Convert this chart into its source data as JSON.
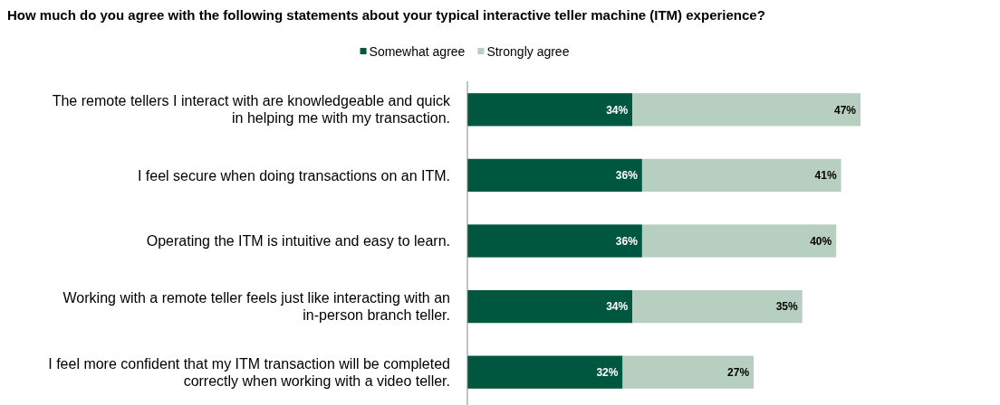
{
  "chart_data": {
    "type": "bar",
    "orientation": "horizontal",
    "stacked": true,
    "title": "How much do you agree with the following statements about your typical interactive teller machine (ITM) experience?",
    "categories": [
      "The remote tellers I interact with are knowledgeable and quick in helping me with my transaction.",
      "I feel secure when doing transactions on an ITM.",
      "Operating the ITM is intuitive and easy to learn.",
      "Working with a remote teller feels just like interacting with an in-person branch teller.",
      "I feel more confident that my ITM transaction will be completed correctly when working with a video teller."
    ],
    "series": [
      {
        "name": "Somewhat agree",
        "color": "#00573f",
        "values": [
          34,
          36,
          36,
          34,
          32
        ],
        "value_labels": [
          "34%",
          "36%",
          "36%",
          "34%",
          "32%"
        ]
      },
      {
        "name": "Strongly agree",
        "color": "#b7cfc1",
        "values": [
          47,
          41,
          40,
          35,
          27
        ],
        "value_labels": [
          "47%",
          "41%",
          "40%",
          "35%",
          "27%"
        ]
      }
    ],
    "legend": "top",
    "grid": false
  }
}
